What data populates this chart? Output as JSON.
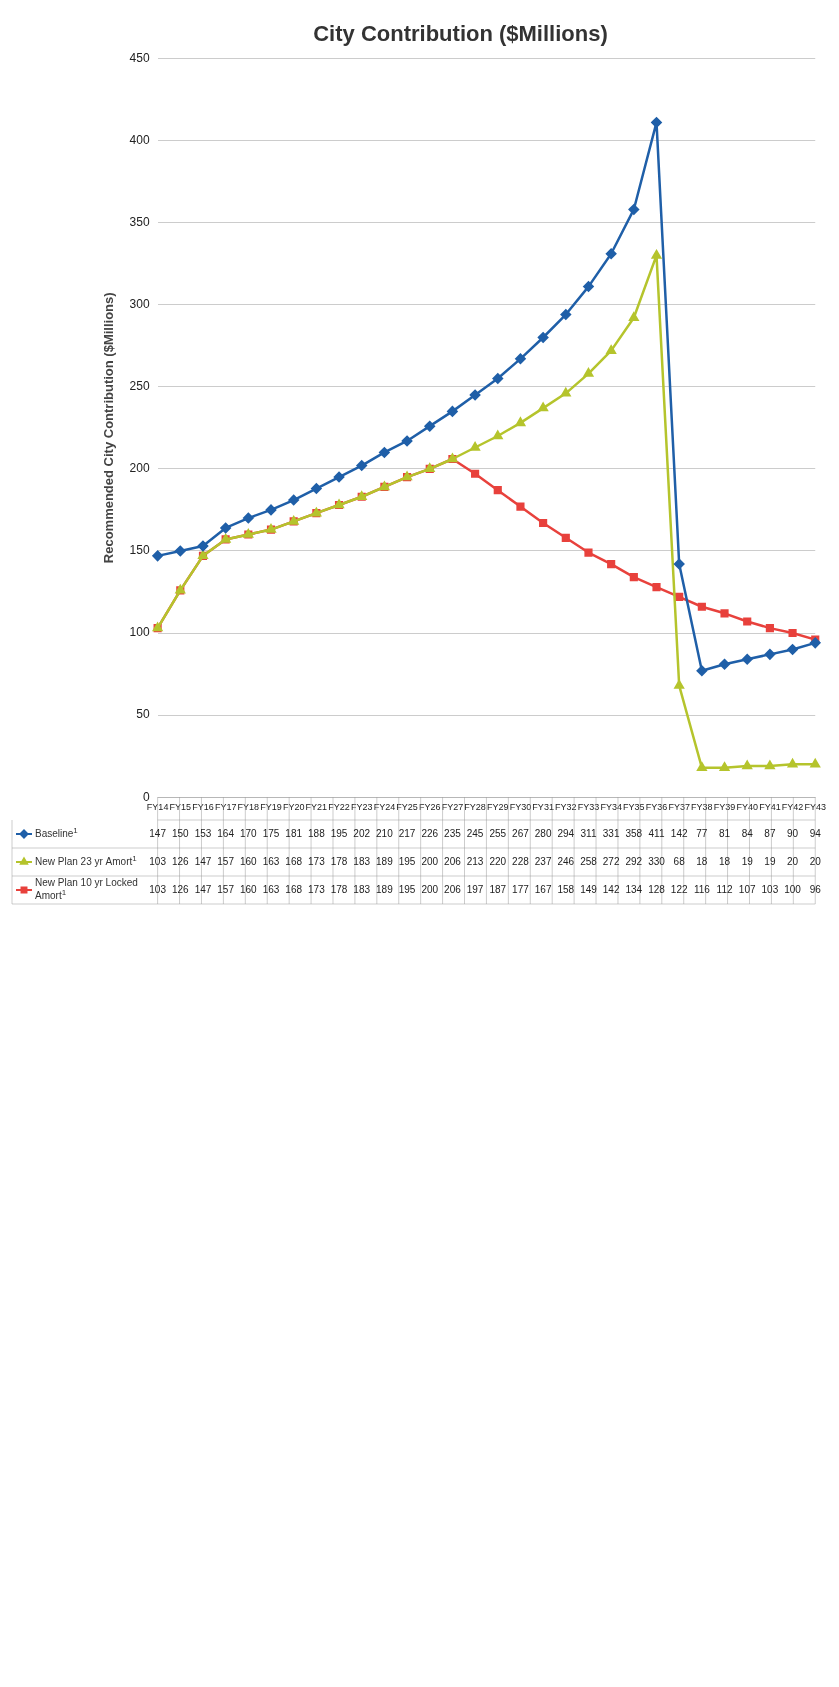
{
  "chart_data": {
    "type": "line",
    "title": "City Contribution ($Millions)",
    "ylabel": "Recommended City Contribution ($Millions)",
    "categories": [
      "FY14",
      "FY15",
      "FY16",
      "FY17",
      "FY18",
      "FY19",
      "FY20",
      "FY21",
      "FY22",
      "FY23",
      "FY24",
      "FY25",
      "FY26",
      "FY27",
      "FY28",
      "FY29",
      "FY30",
      "FY31",
      "FY32",
      "FY33",
      "FY34",
      "FY35",
      "FY36",
      "FY37",
      "FY38",
      "FY39",
      "FY40",
      "FY41",
      "FY42",
      "FY43"
    ],
    "series": [
      {
        "name": "Baseline$^{1}$",
        "color": "#1f5fa8",
        "marker": "diamond",
        "values": [
          147,
          150,
          153,
          164,
          170,
          175,
          181,
          188,
          195,
          202,
          210,
          217,
          226,
          235,
          245,
          255,
          267,
          280,
          294,
          311,
          331,
          358,
          411,
          142,
          77,
          81,
          84,
          87,
          90,
          94
        ]
      },
      {
        "name": "New Plan 23 yr Amort$^{1}$",
        "color": "#b5c42c",
        "marker": "triangle",
        "values": [
          103,
          126,
          147,
          157,
          160,
          163,
          168,
          173,
          178,
          183,
          189,
          195,
          200,
          206,
          213,
          220,
          228,
          237,
          246,
          258,
          272,
          292,
          330,
          68,
          18,
          18,
          19,
          19,
          20,
          20
        ]
      },
      {
        "name": "New Plan 10 yr Locked Amort$^{1}$",
        "color": "#e8413c",
        "marker": "square",
        "values": [
          103,
          126,
          147,
          157,
          160,
          163,
          168,
          173,
          178,
          183,
          189,
          195,
          200,
          206,
          197,
          187,
          177,
          167,
          158,
          149,
          142,
          134,
          128,
          122,
          116,
          112,
          107,
          103,
          100,
          96
        ]
      }
    ],
    "ylim": [
      0,
      450
    ],
    "yticks": [
      0,
      50,
      100,
      150,
      200,
      250,
      300,
      350,
      400,
      450
    ],
    "grid": "y",
    "legend": "bottom",
    "data_labels": true
  }
}
